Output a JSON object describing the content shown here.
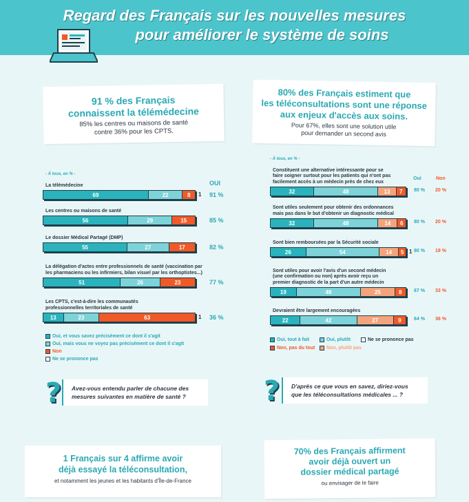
{
  "header": {
    "title_line1": "Regard des Français sur les nouvelles mesures",
    "title_line2": "pour améliorer le système de soins"
  },
  "left_card": {
    "headline_line1": "91 % des Français",
    "headline_line2": "connaissent la télémédecine",
    "sub_line1": "85% les centres ou maisons de santé",
    "sub_line2": "contre 36% pour les CPTS."
  },
  "right_card": {
    "headline_line1": "80% des Français estiment que",
    "headline_line2": "les téléconsultations sont une réponse",
    "headline_line3": "aux enjeux d'accès aux soins.",
    "sub_line1": "Pour 67%, elles sont une solution utile",
    "sub_line2": "pour demander un second avis"
  },
  "chart_data": [
    {
      "type": "bar",
      "hint": "- À tous, en % -",
      "column_header": "OUI",
      "categories": [
        "La télémédecine",
        "Les centres ou maisons de santé",
        "Le dossier Médical Partagé (DMP)",
        "La délégation d'actes entre professionnels de santé (vaccination par les pharmaciens ou les infirmiers, bilan visuel par les orthoptistes...)",
        "Les CPTS, c'est-à-dire les communautés professionnelles territoriales de santé"
      ],
      "category_lines": [
        [
          "La télémédecine"
        ],
        [
          "Les centres ou maisons de santé"
        ],
        [
          "Le dossier Médical Partagé (DMP)"
        ],
        [
          "La délégation d'actes entre professionnels de santé (vaccination par",
          "les pharmaciens ou les infirmiers, bilan visuel par les orthoptistes...)"
        ],
        [
          "Les CPTS, c'est-à-dire les communautés",
          "professionnelles territoriales de santé"
        ]
      ],
      "series": [
        {
          "name": "Oui, et vous savez précisément ce dont il s'agit",
          "color": "#2ab3bd",
          "values": [
            69,
            56,
            55,
            51,
            13
          ]
        },
        {
          "name": "Oui, mais vous ne voyez pas précisément ce dont il s'agit",
          "color": "#7dd3d8",
          "values": [
            22,
            29,
            27,
            26,
            23
          ]
        },
        {
          "name": "Non",
          "color": "#f05a28",
          "values": [
            8,
            15,
            17,
            23,
            63
          ]
        },
        {
          "name": "Ne se prononce pas",
          "color": "#ffffff",
          "values": [
            1,
            null,
            null,
            null,
            1
          ]
        }
      ],
      "oui_totals": [
        "91 %",
        "85 %",
        "82 %",
        "77 %",
        "36 %"
      ]
    },
    {
      "type": "bar",
      "hint": "- À tous, en % -",
      "col_oui": "Oui",
      "col_non": "Non",
      "categories": [
        "Constituent une alternative intéressante pour se faire soigner surtout pour les patients qui n'ont pas facilement accès à un médecin près de chez eux",
        "Sont utiles seulement pour obtenir des ordonnances mais pas dans le but d'obtenir un diagnostic médical",
        "Sont bien remboursées par la Sécurité sociale",
        "Sont utiles pour avoir l'avis d'un second médecin (une confirmation ou non) après avoir reçu un premier diagnostic de la part d'un autre médecin",
        "Devraient être largement encouragées"
      ],
      "category_lines": [
        [
          "Constituent une alternative intéressante pour se",
          "faire soigner surtout pour les patients qui n'ont pas",
          "facilement accès à un médecin près de chez eux"
        ],
        [
          "Sont utiles seulement pour obtenir des ordonnances",
          "mais pas dans le but d'obtenir un diagnostic médical"
        ],
        [
          "Sont bien remboursées par la Sécurité sociale"
        ],
        [
          "Sont utiles pour avoir l'avis d'un second médecin",
          "(une confirmation ou non) après avoir reçu un",
          "premier diagnostic de la part d'un autre médecin"
        ],
        [
          "Devraient être largement encouragées"
        ]
      ],
      "series": [
        {
          "name": "Oui, tout à fait",
          "color": "#2ab3bd",
          "values": [
            32,
            32,
            26,
            19,
            22
          ]
        },
        {
          "name": "Oui, plutôt",
          "color": "#7dd3d8",
          "values": [
            48,
            48,
            54,
            48,
            42
          ]
        },
        {
          "name": "Non, plutôt pas",
          "color": "#f4a47c",
          "values": [
            13,
            14,
            14,
            25,
            27
          ]
        },
        {
          "name": "Non, pas du tout",
          "color": "#f05a28",
          "values": [
            7,
            6,
            5,
            8,
            9
          ]
        },
        {
          "name": "Ne se prononce pas",
          "color": "#ffffff",
          "values": [
            null,
            null,
            1,
            null,
            null
          ]
        }
      ],
      "oui_totals": [
        "80 %",
        "80 %",
        "80 %",
        "67 %",
        "64 %"
      ],
      "non_totals": [
        "20 %",
        "20 %",
        "19 %",
        "33 %",
        "36 %"
      ]
    }
  ],
  "questions": {
    "left_line1": "Avez-vous entendu parler de chacune des",
    "left_line2": "mesures suivantes en matière de santé ?",
    "right_line1": "D'après ce que vous en savez, diriez-vous",
    "right_line2": "que les téléconsultations médicales ... ?",
    "mark": "?"
  },
  "bottom_left": {
    "line1": "1 Français sur 4 affirme avoir",
    "line2": "déjà essayé la téléconsultation,",
    "line3": "et notamment les jeunes et les habitants d'Île-de-France"
  },
  "bottom_right": {
    "line1": "70% des Français affirment",
    "line2": "avoir déjà ouvert un",
    "line3": "dossier médical partagé",
    "line4": "ou envisager de le faire"
  }
}
